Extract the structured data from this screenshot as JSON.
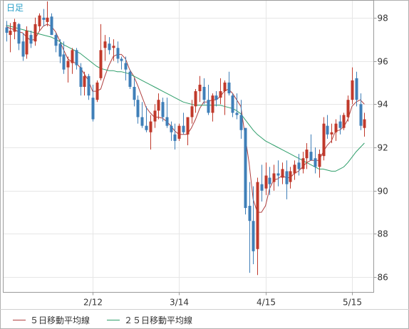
{
  "colors": {
    "frame": "#9a9a9a",
    "grid": "#e6e6e6",
    "up": "#c0392b",
    "down": "#3f7fb8",
    "ma5": "#b04040",
    "ma25": "#2e9e6a",
    "period_label": "#2aa0c8"
  },
  "chart_data": {
    "type": "candlestick",
    "period_label": "日足",
    "ylim": [
      85.3,
      98.8
    ],
    "y_ticks": [
      86,
      88,
      90,
      92,
      94,
      96,
      98
    ],
    "y_tick_labels": [
      "86",
      "88",
      "90",
      "92",
      "94",
      "96",
      "98"
    ],
    "x_tick_labels": [
      "2/12",
      "3/14",
      "4/15",
      "5/15"
    ],
    "x_tick_indices": [
      21,
      42,
      63,
      84
    ],
    "candles_ohlc": [
      [
        97.55,
        97.85,
        96.9,
        97.3
      ],
      [
        97.2,
        97.75,
        96.4,
        97.4
      ],
      [
        97.35,
        97.95,
        97.0,
        97.8
      ],
      [
        97.7,
        97.75,
        96.5,
        96.8
      ],
      [
        96.9,
        97.3,
        96.0,
        96.2
      ],
      [
        96.3,
        97.6,
        96.1,
        97.4
      ],
      [
        97.2,
        97.4,
        96.6,
        96.8
      ],
      [
        96.9,
        98.0,
        96.7,
        97.7
      ],
      [
        97.6,
        98.2,
        97.4,
        98.1
      ],
      [
        98.0,
        98.4,
        97.6,
        97.9
      ],
      [
        97.8,
        98.75,
        97.6,
        98.0
      ],
      [
        98.05,
        98.2,
        97.2,
        97.2
      ],
      [
        97.2,
        97.3,
        96.4,
        96.7
      ],
      [
        96.8,
        97.0,
        95.9,
        96.2
      ],
      [
        96.3,
        96.9,
        95.4,
        95.6
      ],
      [
        95.7,
        96.2,
        95.0,
        96.0
      ],
      [
        95.9,
        96.6,
        95.4,
        96.5
      ],
      [
        96.5,
        96.6,
        95.6,
        95.8
      ],
      [
        95.7,
        95.9,
        94.4,
        94.8
      ],
      [
        94.8,
        95.5,
        94.4,
        95.3
      ],
      [
        95.3,
        95.4,
        94.2,
        94.4
      ],
      [
        94.3,
        94.9,
        93.2,
        93.3
      ],
      [
        94.2,
        95.1,
        94.1,
        95.0
      ],
      [
        95.2,
        97.7,
        95.1,
        96.5
      ],
      [
        96.6,
        97.2,
        96.0,
        96.9
      ],
      [
        96.8,
        97.1,
        96.3,
        96.5
      ],
      [
        96.6,
        97.0,
        96.0,
        96.7
      ],
      [
        96.6,
        96.9,
        95.9,
        96.1
      ],
      [
        96.1,
        96.2,
        95.6,
        96.0
      ],
      [
        95.9,
        96.2,
        95.1,
        95.6
      ],
      [
        95.5,
        95.6,
        94.7,
        94.8
      ],
      [
        94.8,
        95.2,
        93.9,
        94.2
      ],
      [
        94.2,
        94.4,
        93.1,
        93.4
      ],
      [
        93.4,
        94.1,
        92.9,
        93.0
      ],
      [
        93.0,
        93.9,
        92.7,
        92.8
      ],
      [
        92.7,
        93.5,
        91.9,
        93.2
      ],
      [
        93.2,
        94.0,
        92.9,
        93.7
      ],
      [
        93.7,
        94.5,
        93.3,
        94.2
      ],
      [
        94.1,
        94.3,
        93.2,
        93.4
      ],
      [
        93.4,
        94.3,
        92.9,
        93.0
      ],
      [
        93.0,
        93.2,
        92.3,
        92.7
      ],
      [
        92.6,
        93.1,
        91.9,
        92.3
      ],
      [
        92.4,
        93.1,
        92.3,
        93.0
      ],
      [
        93.0,
        93.6,
        92.6,
        92.7
      ],
      [
        92.6,
        93.4,
        92.1,
        93.4
      ],
      [
        93.4,
        94.2,
        93.1,
        93.9
      ],
      [
        93.9,
        94.7,
        93.6,
        94.6
      ],
      [
        94.6,
        95.3,
        94.1,
        94.9
      ],
      [
        94.8,
        95.2,
        94.0,
        94.2
      ],
      [
        94.2,
        94.9,
        93.5,
        93.6
      ],
      [
        93.6,
        94.5,
        93.2,
        94.4
      ],
      [
        94.4,
        94.6,
        93.9,
        94.2
      ],
      [
        94.3,
        95.2,
        94.0,
        94.6
      ],
      [
        94.6,
        95.1,
        93.5,
        95.0
      ],
      [
        95.0,
        95.5,
        94.4,
        94.5
      ],
      [
        94.4,
        94.5,
        93.4,
        93.6
      ],
      [
        93.6,
        94.5,
        93.3,
        93.5
      ],
      [
        93.5,
        94.2,
        92.4,
        92.8
      ],
      [
        92.9,
        92.9,
        88.9,
        89.2
      ],
      [
        89.3,
        90.4,
        86.2,
        88.6
      ],
      [
        88.6,
        90.2,
        86.6,
        87.2
      ],
      [
        87.3,
        90.6,
        86.1,
        90.4
      ],
      [
        90.3,
        91.2,
        89.5,
        90.0
      ],
      [
        90.1,
        91.3,
        89.8,
        90.7
      ],
      [
        90.6,
        91.1,
        89.8,
        90.3
      ],
      [
        90.4,
        91.2,
        90.0,
        90.8
      ],
      [
        90.8,
        91.4,
        90.2,
        90.7
      ],
      [
        90.6,
        91.3,
        90.3,
        91.0
      ],
      [
        90.9,
        91.4,
        89.6,
        90.3
      ],
      [
        90.4,
        91.1,
        90.1,
        90.9
      ],
      [
        90.8,
        91.4,
        90.5,
        91.2
      ],
      [
        91.3,
        91.7,
        90.7,
        91.0
      ],
      [
        91.0,
        91.8,
        90.8,
        91.5
      ],
      [
        91.5,
        92.2,
        91.0,
        91.9
      ],
      [
        91.8,
        92.6,
        91.5,
        91.4
      ],
      [
        91.5,
        92.0,
        90.8,
        91.1
      ],
      [
        91.1,
        91.9,
        90.6,
        91.7
      ],
      [
        91.6,
        93.4,
        91.4,
        93.1
      ],
      [
        93.0,
        93.5,
        92.4,
        92.6
      ],
      [
        92.6,
        93.1,
        92.2,
        92.7
      ],
      [
        92.7,
        93.3,
        92.3,
        93.1
      ],
      [
        93.2,
        93.5,
        92.6,
        92.9
      ],
      [
        92.9,
        93.6,
        92.8,
        93.5
      ],
      [
        93.4,
        94.4,
        93.2,
        94.2
      ],
      [
        94.2,
        95.7,
        94.0,
        95.1
      ],
      [
        95.2,
        95.5,
        93.9,
        94.2
      ],
      [
        94.0,
        94.5,
        92.8,
        93.0
      ],
      [
        92.9,
        93.6,
        92.5,
        93.3
      ]
    ],
    "series": [
      {
        "name": "５日移動平均線",
        "values": [
          97.6,
          97.5,
          97.45,
          97.35,
          97.3,
          97.1,
          96.95,
          97.0,
          97.35,
          97.6,
          97.7,
          97.6,
          97.35,
          96.95,
          96.5,
          96.1,
          95.95,
          95.9,
          95.7,
          95.4,
          95.1,
          94.6,
          94.6,
          94.7,
          95.3,
          95.8,
          96.2,
          96.3,
          96.3,
          96.1,
          95.6,
          95.3,
          94.85,
          94.35,
          93.85,
          93.6,
          93.4,
          93.4,
          93.35,
          93.2,
          93.0,
          92.75,
          92.6,
          92.6,
          92.6,
          92.9,
          93.3,
          93.8,
          94.1,
          94.1,
          94.2,
          94.2,
          94.35,
          94.6,
          94.7,
          94.5,
          94.2,
          93.9,
          92.6,
          91.3,
          89.6,
          89.0,
          89.0,
          89.3,
          90.1,
          90.5,
          90.55,
          90.7,
          90.6,
          90.6,
          90.8,
          90.9,
          91.1,
          91.3,
          91.4,
          91.4,
          91.4,
          91.8,
          92.1,
          92.3,
          92.75,
          92.8,
          92.95,
          93.3,
          93.9,
          94.1,
          94.2,
          94.0
        ]
      },
      {
        "name": "２５日移動平均線",
        "values": [
          97.65,
          97.6,
          97.55,
          97.5,
          97.45,
          97.4,
          97.35,
          97.3,
          97.25,
          97.2,
          97.15,
          97.1,
          97.0,
          96.9,
          96.75,
          96.65,
          96.55,
          96.45,
          96.35,
          96.2,
          96.05,
          95.9,
          95.75,
          95.65,
          95.6,
          95.55,
          95.55,
          95.5,
          95.5,
          95.45,
          95.4,
          95.3,
          95.2,
          95.1,
          95.0,
          94.9,
          94.8,
          94.7,
          94.6,
          94.5,
          94.4,
          94.3,
          94.2,
          94.1,
          94.05,
          94.0,
          93.95,
          93.95,
          93.95,
          93.95,
          93.95,
          93.95,
          93.95,
          93.9,
          93.85,
          93.8,
          93.7,
          93.55,
          93.3,
          93.05,
          92.8,
          92.6,
          92.45,
          92.3,
          92.2,
          92.1,
          92.0,
          91.9,
          91.8,
          91.7,
          91.6,
          91.5,
          91.4,
          91.3,
          91.2,
          91.1,
          91.0,
          91.0,
          90.95,
          90.9,
          90.9,
          91.0,
          91.1,
          91.3,
          91.55,
          91.8,
          92.0,
          92.2
        ]
      }
    ],
    "legend": [
      {
        "label": "５日移動平均線",
        "series": 0
      },
      {
        "label": "２５日移動平均線",
        "series": 1
      }
    ]
  }
}
